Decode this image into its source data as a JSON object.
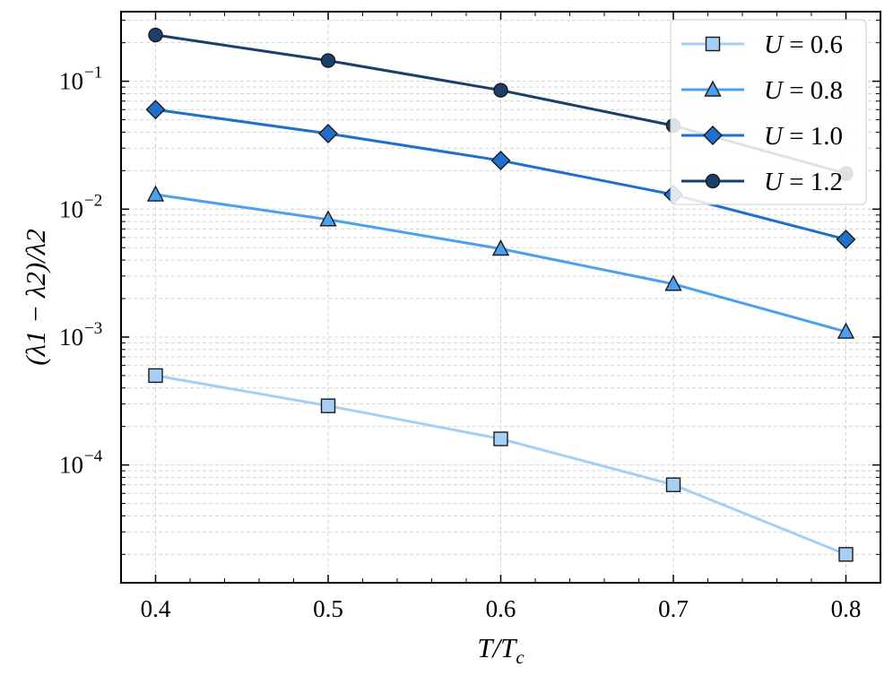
{
  "chart_data": {
    "type": "line",
    "title": "",
    "xlabel": "T/Tc",
    "xlabel_main": "T/T",
    "xlabel_sub": "c",
    "ylabel": "(λ1 − λ2)/λ2",
    "y_scale": "log",
    "x": [
      0.4,
      0.5,
      0.6,
      0.7,
      0.8
    ],
    "xlim": [
      0.38,
      0.82
    ],
    "ylim": [
      1.2e-05,
      0.35
    ],
    "xticks": [
      "0.4",
      "0.5",
      "0.6",
      "0.7",
      "0.8"
    ],
    "yticks": [
      {
        "value": 0.1,
        "base": "10",
        "exp": "−1"
      },
      {
        "value": 0.01,
        "base": "10",
        "exp": "−2"
      },
      {
        "value": 0.001,
        "base": "10",
        "exp": "−3"
      },
      {
        "value": 0.0001,
        "base": "10",
        "exp": "−4"
      }
    ],
    "grid": true,
    "legend_position": "top-right",
    "series": [
      {
        "name": "U = 0.6",
        "label_var": "U",
        "label_val": "= 0.6",
        "values": [
          0.0005,
          0.00029,
          0.00016,
          7e-05,
          2e-05
        ],
        "color": "#a6cff5",
        "marker": "square"
      },
      {
        "name": "U = 0.8",
        "label_var": "U",
        "label_val": "= 0.8",
        "values": [
          0.013,
          0.0083,
          0.0049,
          0.0026,
          0.0011
        ],
        "color": "#4ba0ef",
        "marker": "triangle"
      },
      {
        "name": "U = 1.0",
        "label_var": "U",
        "label_val": "= 1.0",
        "values": [
          0.06,
          0.039,
          0.024,
          0.013,
          0.0058
        ],
        "color": "#1f6fcd",
        "marker": "diamond"
      },
      {
        "name": "U = 1.2",
        "label_var": "U",
        "label_val": "= 1.2",
        "values": [
          0.23,
          0.145,
          0.085,
          0.045,
          0.019
        ],
        "color": "#1b3e6b",
        "marker": "circle"
      }
    ]
  }
}
